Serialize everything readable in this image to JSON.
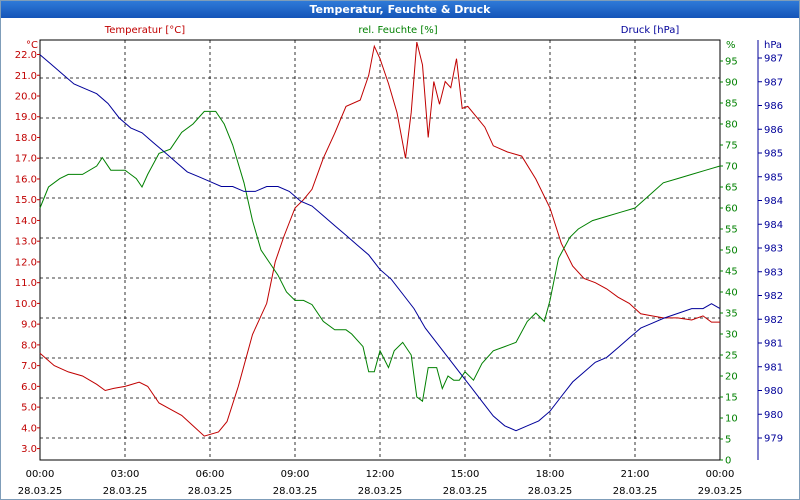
{
  "window": {
    "title": "Temperatur, Feuchte & Druck"
  },
  "chart_data": {
    "type": "line",
    "title": "Temperatur, Feuchte & Druck",
    "x_unit": "hours since 28.03.25 00:00",
    "x_ticks": [
      {
        "time": "00:00",
        "date": "28.03.25"
      },
      {
        "time": "03:00",
        "date": "28.03.25"
      },
      {
        "time": "06:00",
        "date": "28.03.25"
      },
      {
        "time": "09:00",
        "date": "28.03.25"
      },
      {
        "time": "12:00",
        "date": "28.03.25"
      },
      {
        "time": "15:00",
        "date": "28.03.25"
      },
      {
        "time": "18:00",
        "date": "28.03.25"
      },
      {
        "time": "21:00",
        "date": "28.03.25"
      },
      {
        "time": "00:00",
        "date": "29.03.25"
      }
    ],
    "xlim": [
      0,
      24
    ],
    "axes": {
      "temp": {
        "unit_label": "°C",
        "ticks": [
          "3.0",
          "4.0",
          "5.0",
          "6.0",
          "7.0",
          "8.0",
          "9.0",
          "10.0",
          "11.0",
          "12.0",
          "13.0",
          "14.0",
          "15.0",
          "16.0",
          "17.0",
          "18.0",
          "19.0",
          "20.0",
          "21.0",
          "22.0"
        ],
        "ylim": [
          2.45,
          22.7
        ],
        "color": "#c00000"
      },
      "hum": {
        "unit_label": "%",
        "ticks": [
          "0",
          "5",
          "10",
          "15",
          "20",
          "25",
          "30",
          "35",
          "40",
          "45",
          "50",
          "55",
          "60",
          "65",
          "70",
          "75",
          "80",
          "85",
          "90",
          "95"
        ],
        "ylim": [
          0,
          100
        ],
        "color": "#008000"
      },
      "pres": {
        "unit_label": "hPa",
        "ticks": [
          "979",
          "980",
          "980",
          "981",
          "981",
          "982",
          "982",
          "983",
          "983",
          "984",
          "984",
          "985",
          "985",
          "986",
          "986",
          "987",
          "987"
        ],
        "ylim": [
          978.7,
          987.3
        ],
        "color": "#000099"
      }
    },
    "series": [
      {
        "name": "Temperatur [°C]",
        "axis": "temp",
        "color": "#c00000",
        "points": [
          [
            0,
            7.6
          ],
          [
            0.5,
            7.0
          ],
          [
            1.0,
            6.7
          ],
          [
            1.5,
            6.5
          ],
          [
            2.0,
            6.1
          ],
          [
            2.3,
            5.8
          ],
          [
            2.6,
            5.9
          ],
          [
            3.0,
            6.0
          ],
          [
            3.5,
            6.2
          ],
          [
            3.8,
            6.0
          ],
          [
            4.2,
            5.2
          ],
          [
            4.6,
            4.9
          ],
          [
            5.0,
            4.6
          ],
          [
            5.4,
            4.1
          ],
          [
            5.8,
            3.6
          ],
          [
            6.3,
            3.8
          ],
          [
            6.6,
            4.3
          ],
          [
            7.0,
            6.0
          ],
          [
            7.5,
            8.5
          ],
          [
            8.0,
            10.0
          ],
          [
            8.3,
            12.0
          ],
          [
            8.6,
            13.2
          ],
          [
            9.0,
            14.6
          ],
          [
            9.3,
            15.0
          ],
          [
            9.6,
            15.5
          ],
          [
            10.0,
            17.0
          ],
          [
            10.4,
            18.2
          ],
          [
            10.8,
            19.5
          ],
          [
            11.3,
            19.8
          ],
          [
            11.6,
            21.0
          ],
          [
            11.8,
            22.4
          ],
          [
            12.0,
            21.8
          ],
          [
            12.3,
            20.6
          ],
          [
            12.6,
            19.2
          ],
          [
            12.9,
            17.0
          ],
          [
            13.1,
            19.2
          ],
          [
            13.3,
            22.6
          ],
          [
            13.5,
            21.5
          ],
          [
            13.7,
            18.0
          ],
          [
            13.9,
            20.7
          ],
          [
            14.1,
            19.6
          ],
          [
            14.3,
            20.7
          ],
          [
            14.5,
            20.4
          ],
          [
            14.7,
            21.8
          ],
          [
            14.9,
            19.4
          ],
          [
            15.1,
            19.5
          ],
          [
            15.4,
            19.0
          ],
          [
            15.7,
            18.5
          ],
          [
            16.0,
            17.6
          ],
          [
            16.5,
            17.3
          ],
          [
            17.0,
            17.1
          ],
          [
            17.5,
            16.0
          ],
          [
            18.0,
            14.6
          ],
          [
            18.4,
            12.9
          ],
          [
            18.8,
            11.8
          ],
          [
            19.2,
            11.2
          ],
          [
            19.6,
            11.0
          ],
          [
            20.0,
            10.7
          ],
          [
            20.4,
            10.3
          ],
          [
            20.8,
            10.0
          ],
          [
            21.2,
            9.5
          ],
          [
            21.6,
            9.4
          ],
          [
            22.0,
            9.3
          ],
          [
            22.5,
            9.3
          ],
          [
            23.0,
            9.2
          ],
          [
            23.4,
            9.4
          ],
          [
            23.7,
            9.1
          ],
          [
            24.0,
            9.1
          ]
        ]
      },
      {
        "name": "rel. Feuchte [%]",
        "axis": "hum",
        "color": "#008000",
        "points": [
          [
            0,
            60
          ],
          [
            0.3,
            65
          ],
          [
            0.7,
            67
          ],
          [
            1.0,
            68
          ],
          [
            1.5,
            68
          ],
          [
            2.0,
            70
          ],
          [
            2.2,
            72
          ],
          [
            2.5,
            69
          ],
          [
            3.0,
            69
          ],
          [
            3.4,
            67
          ],
          [
            3.6,
            65
          ],
          [
            3.8,
            68
          ],
          [
            4.2,
            73
          ],
          [
            4.6,
            74
          ],
          [
            5.0,
            78
          ],
          [
            5.4,
            80
          ],
          [
            5.8,
            83
          ],
          [
            6.2,
            83
          ],
          [
            6.5,
            80
          ],
          [
            6.8,
            75
          ],
          [
            7.2,
            66
          ],
          [
            7.5,
            57
          ],
          [
            7.8,
            50
          ],
          [
            8.1,
            47
          ],
          [
            8.4,
            44
          ],
          [
            8.7,
            40
          ],
          [
            9.0,
            38
          ],
          [
            9.3,
            38
          ],
          [
            9.6,
            37
          ],
          [
            10.0,
            33
          ],
          [
            10.4,
            31
          ],
          [
            10.8,
            31
          ],
          [
            11.0,
            30
          ],
          [
            11.4,
            27
          ],
          [
            11.6,
            21
          ],
          [
            11.8,
            21
          ],
          [
            12.0,
            26
          ],
          [
            12.3,
            22
          ],
          [
            12.5,
            26
          ],
          [
            12.8,
            28
          ],
          [
            13.1,
            25
          ],
          [
            13.3,
            15
          ],
          [
            13.5,
            14
          ],
          [
            13.7,
            22
          ],
          [
            14.0,
            22
          ],
          [
            14.2,
            17
          ],
          [
            14.4,
            20
          ],
          [
            14.6,
            19
          ],
          [
            14.8,
            19
          ],
          [
            15.0,
            21
          ],
          [
            15.3,
            19
          ],
          [
            15.6,
            23
          ],
          [
            16.0,
            26
          ],
          [
            16.4,
            27
          ],
          [
            16.8,
            28
          ],
          [
            17.2,
            33
          ],
          [
            17.5,
            35
          ],
          [
            17.8,
            33
          ],
          [
            18.0,
            38
          ],
          [
            18.3,
            48
          ],
          [
            18.7,
            53
          ],
          [
            19.0,
            55
          ],
          [
            19.5,
            57
          ],
          [
            20.0,
            58
          ],
          [
            20.5,
            59
          ],
          [
            21.0,
            60
          ],
          [
            21.5,
            63
          ],
          [
            22.0,
            66
          ],
          [
            22.5,
            67
          ],
          [
            23.0,
            68
          ],
          [
            23.5,
            69
          ],
          [
            24.0,
            70
          ]
        ]
      },
      {
        "name": "Druck [hPa]",
        "axis": "pres",
        "color": "#000099",
        "points": [
          [
            0,
            987.0
          ],
          [
            0.4,
            986.8
          ],
          [
            0.8,
            986.6
          ],
          [
            1.2,
            986.4
          ],
          [
            1.6,
            986.3
          ],
          [
            2.0,
            986.2
          ],
          [
            2.4,
            986.0
          ],
          [
            2.8,
            985.7
          ],
          [
            3.2,
            985.5
          ],
          [
            3.6,
            985.4
          ],
          [
            4.0,
            985.2
          ],
          [
            4.4,
            985.0
          ],
          [
            4.8,
            984.8
          ],
          [
            5.2,
            984.6
          ],
          [
            5.6,
            984.5
          ],
          [
            6.0,
            984.4
          ],
          [
            6.4,
            984.3
          ],
          [
            6.8,
            984.3
          ],
          [
            7.2,
            984.2
          ],
          [
            7.6,
            984.2
          ],
          [
            8.0,
            984.3
          ],
          [
            8.4,
            984.3
          ],
          [
            8.8,
            984.2
          ],
          [
            9.2,
            984.0
          ],
          [
            9.6,
            983.9
          ],
          [
            10.0,
            983.7
          ],
          [
            10.4,
            983.5
          ],
          [
            10.8,
            983.3
          ],
          [
            11.2,
            983.1
          ],
          [
            11.6,
            982.9
          ],
          [
            12.0,
            982.6
          ],
          [
            12.4,
            982.4
          ],
          [
            12.8,
            982.1
          ],
          [
            13.2,
            981.8
          ],
          [
            13.6,
            981.4
          ],
          [
            14.0,
            981.1
          ],
          [
            14.4,
            980.8
          ],
          [
            14.8,
            980.5
          ],
          [
            15.2,
            980.2
          ],
          [
            15.6,
            979.9
          ],
          [
            16.0,
            979.6
          ],
          [
            16.4,
            979.4
          ],
          [
            16.8,
            979.3
          ],
          [
            17.2,
            979.4
          ],
          [
            17.6,
            979.5
          ],
          [
            18.0,
            979.7
          ],
          [
            18.4,
            980.0
          ],
          [
            18.8,
            980.3
          ],
          [
            19.2,
            980.5
          ],
          [
            19.6,
            980.7
          ],
          [
            20.0,
            980.8
          ],
          [
            20.4,
            981.0
          ],
          [
            20.8,
            981.2
          ],
          [
            21.2,
            981.4
          ],
          [
            21.6,
            981.5
          ],
          [
            22.0,
            981.6
          ],
          [
            22.5,
            981.7
          ],
          [
            23.0,
            981.8
          ],
          [
            23.4,
            981.8
          ],
          [
            23.7,
            981.9
          ],
          [
            24.0,
            981.8
          ]
        ]
      }
    ],
    "legend": [
      {
        "label": "Temperatur [°C]",
        "color": "#c00000"
      },
      {
        "label": "rel. Feuchte [%]",
        "color": "#008000"
      },
      {
        "label": "Druck [hPa]",
        "color": "#000099"
      }
    ],
    "grid": true
  }
}
